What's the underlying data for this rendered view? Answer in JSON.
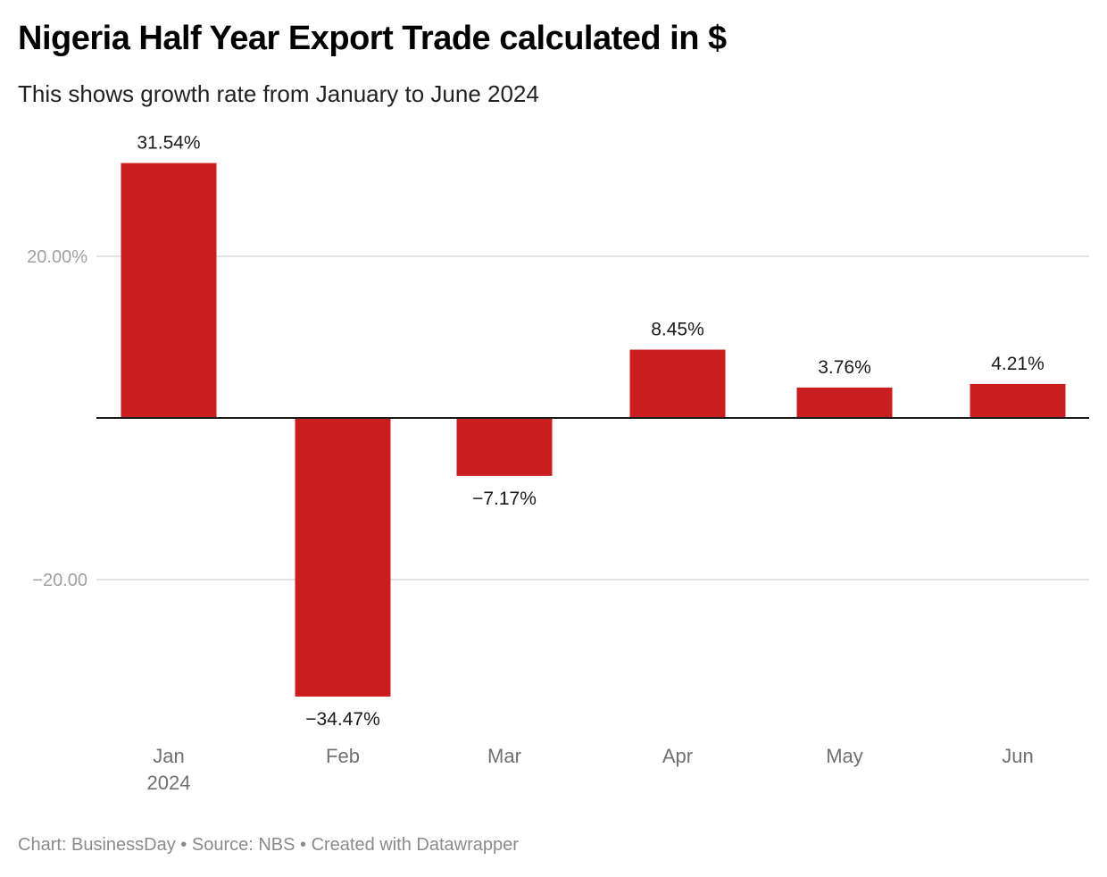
{
  "header": {
    "title": "Nigeria Half Year Export Trade calculated in $",
    "subtitle": "This shows growth rate from January to June 2024"
  },
  "footer": {
    "credit": "Chart: BusinessDay • Source: NBS • Created with Datawrapper"
  },
  "colors": {
    "bar": "#c91d1f",
    "gridline": "#e3e3e3",
    "baseline": "#1a1a1a"
  },
  "chart_data": {
    "type": "bar",
    "title": "Nigeria Half Year Export Trade calculated in $",
    "subtitle": "This shows growth rate from January to June 2024",
    "xlabel": "",
    "ylabel": "",
    "categories": [
      "Jan",
      "Feb",
      "Mar",
      "Apr",
      "May",
      "Jun"
    ],
    "category_sublabels": [
      "2024",
      "",
      "",
      "",
      "",
      ""
    ],
    "values": [
      31.54,
      -34.47,
      -7.17,
      8.45,
      3.76,
      4.21
    ],
    "value_labels": [
      "31.54%",
      "−34.47%",
      "−7.17%",
      "8.45%",
      "3.76%",
      "4.21%"
    ],
    "y_ticks": [
      20,
      -20
    ],
    "y_tick_labels": [
      "20.00%",
      "−20.00"
    ],
    "ylim": [
      -38,
      36
    ],
    "grid": true,
    "legend": "none",
    "source": "NBS"
  }
}
